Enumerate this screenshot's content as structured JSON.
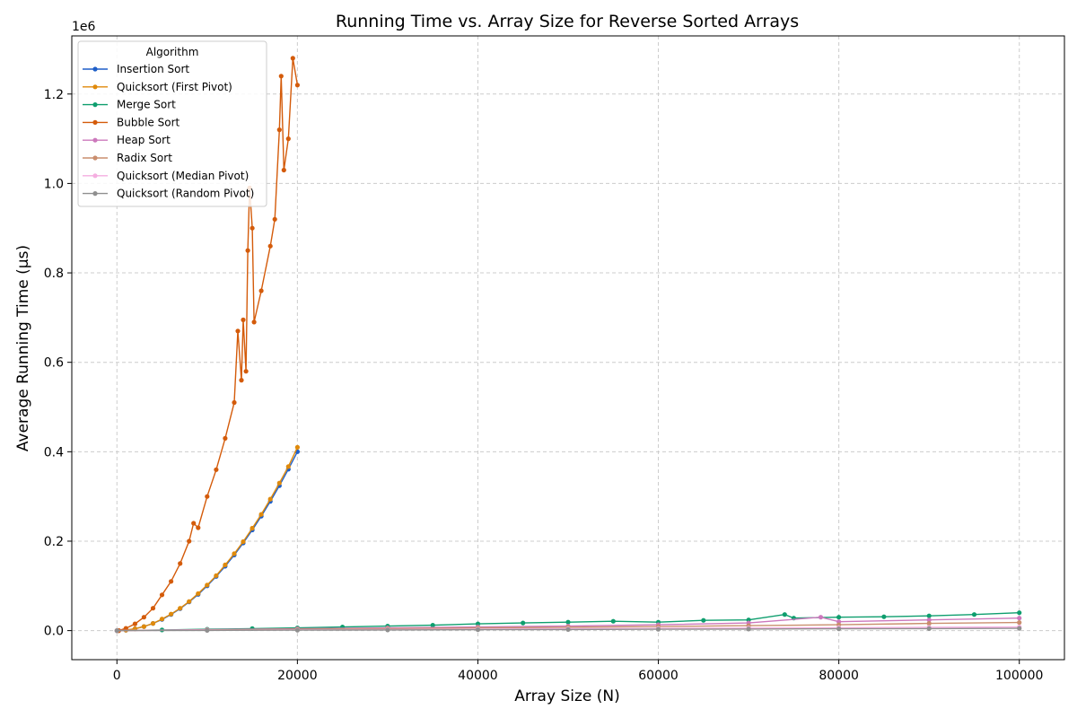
{
  "chart_data": {
    "type": "line",
    "title": "Running Time vs. Array Size for Reverse Sorted Arrays",
    "xlabel": "Array Size (N)",
    "ylabel": "Average Running Time (μs)",
    "y_offset_text": "1e6",
    "xlim": [
      -5000,
      105000
    ],
    "ylim": [
      -65000,
      1330000
    ],
    "x_ticks": [
      0,
      20000,
      40000,
      60000,
      80000,
      100000
    ],
    "x_tick_labels": [
      "0",
      "20000",
      "40000",
      "60000",
      "80000",
      "100000"
    ],
    "y_ticks": [
      0,
      200000,
      400000,
      600000,
      800000,
      1000000,
      1200000
    ],
    "y_tick_labels": [
      "0.0",
      "0.2",
      "0.4",
      "0.6",
      "0.8",
      "1.0",
      "1.2"
    ],
    "grid": true,
    "legend": {
      "title": "Algorithm",
      "placement": "top-left"
    },
    "series": [
      {
        "name": "Insertion Sort",
        "color": "#1f5fc8",
        "x": [
          200,
          1000,
          2000,
          3000,
          4000,
          5000,
          6000,
          7000,
          8000,
          9000,
          10000,
          11000,
          12000,
          13000,
          14000,
          15000,
          16000,
          17000,
          18000,
          19000,
          20000
        ],
        "y": [
          0,
          1000,
          4000,
          9000,
          16000,
          25000,
          36000,
          49000,
          64000,
          81000,
          100000,
          121000,
          144000,
          169000,
          196000,
          225000,
          256000,
          289000,
          324000,
          361000,
          400000
        ]
      },
      {
        "name": "Quicksort (First Pivot)",
        "color": "#e08a0b",
        "x": [
          200,
          1000,
          2000,
          3000,
          4000,
          5000,
          6000,
          7000,
          8000,
          9000,
          10000,
          11000,
          12000,
          13000,
          14000,
          15000,
          16000,
          17000,
          18000,
          19000,
          20000
        ],
        "y": [
          0,
          1000,
          4000,
          9000,
          16000,
          26000,
          37000,
          50000,
          65000,
          83000,
          102000,
          123000,
          147000,
          172000,
          199000,
          229000,
          260000,
          294000,
          330000,
          367000,
          410000
        ]
      },
      {
        "name": "Merge Sort",
        "color": "#0e9e6e",
        "x": [
          0,
          5000,
          10000,
          15000,
          20000,
          25000,
          30000,
          35000,
          40000,
          45000,
          50000,
          55000,
          60000,
          65000,
          70000,
          74000,
          75000,
          80000,
          85000,
          90000,
          95000,
          100000
        ],
        "y": [
          0,
          1500,
          3000,
          4500,
          6000,
          8000,
          10000,
          12000,
          15000,
          17000,
          19000,
          21000,
          19000,
          23000,
          24000,
          36000,
          28000,
          30000,
          31000,
          33000,
          36000,
          40000
        ]
      },
      {
        "name": "Bubble Sort",
        "color": "#d45b0a",
        "x": [
          200,
          1000,
          2000,
          3000,
          4000,
          5000,
          6000,
          7000,
          8000,
          8500,
          9000,
          10000,
          11000,
          12000,
          13000,
          13400,
          13800,
          14000,
          14300,
          14500,
          14700,
          15000,
          15200,
          16000,
          17000,
          17500,
          18000,
          18200,
          18500,
          19000,
          19500,
          20000
        ],
        "y": [
          0,
          5000,
          15000,
          30000,
          50000,
          80000,
          110000,
          150000,
          200000,
          240000,
          230000,
          300000,
          360000,
          430000,
          510000,
          670000,
          560000,
          695000,
          580000,
          850000,
          990000,
          900000,
          690000,
          760000,
          860000,
          920000,
          1120000,
          1240000,
          1030000,
          1100000,
          1280000,
          1220000
        ]
      },
      {
        "name": "Heap Sort",
        "color": "#cc78bc",
        "x": [
          0,
          10000,
          20000,
          30000,
          40000,
          50000,
          60000,
          70000,
          78000,
          80000,
          90000,
          100000
        ],
        "y": [
          0,
          2000,
          4000,
          6000,
          8000,
          10000,
          13000,
          17000,
          30000,
          20000,
          24000,
          28000
        ]
      },
      {
        "name": "Radix Sort",
        "color": "#ca8e6e",
        "x": [
          0,
          10000,
          20000,
          30000,
          40000,
          50000,
          60000,
          70000,
          80000,
          90000,
          100000
        ],
        "y": [
          0,
          1500,
          3000,
          4500,
          6000,
          7500,
          9000,
          11000,
          13000,
          16000,
          18000
        ]
      },
      {
        "name": "Quicksort (Median Pivot)",
        "color": "#f5aee0",
        "x": [
          0,
          10000,
          20000,
          30000,
          40000,
          50000,
          60000,
          70000,
          80000,
          90000,
          100000
        ],
        "y": [
          0,
          800,
          1600,
          2400,
          3200,
          4000,
          4800,
          5600,
          6400,
          7200,
          8000
        ]
      },
      {
        "name": "Quicksort (Random Pivot)",
        "color": "#8f8f8f",
        "x": [
          0,
          10000,
          20000,
          30000,
          40000,
          50000,
          60000,
          70000,
          80000,
          90000,
          100000
        ],
        "y": [
          0,
          500,
          1000,
          1500,
          2000,
          2500,
          3000,
          3500,
          4000,
          4500,
          5000
        ]
      }
    ]
  }
}
